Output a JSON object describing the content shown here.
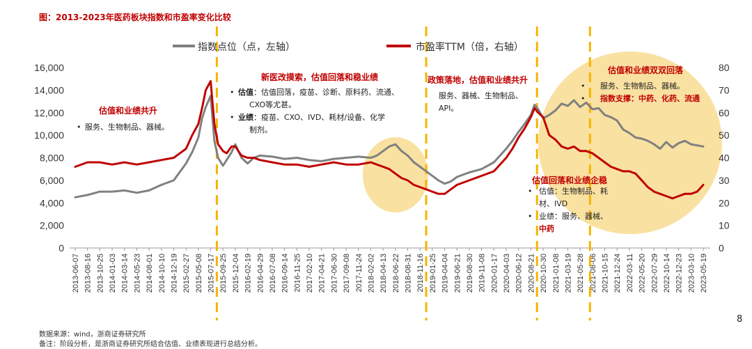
{
  "title": "图：2013-2023年医药板块指数和市盈率变化比较",
  "source": "数据来源：wind，浙商证券研究所",
  "note": "备注：阶段分析，是浙商证券研究所结合估值、业绩表现进行总结分析。",
  "page_number": "8",
  "colors": {
    "index": "#808080",
    "pe": "#c00000",
    "dash": "#f5b400",
    "circle": "#f8d98a",
    "title": "#c00000"
  },
  "annotations": {
    "a1_title": "估值和业绩共升",
    "a1_l1": "服务、生物制品、器械。",
    "a2_title": "新医改摸索，估值回落和稳业绩",
    "a2_l1a": "估值",
    "a2_l1b": "：估值回落，疫苗、诊断、原料药、流通、",
    "a2_l2": "CXO等尤甚。",
    "a2_l3a": "业绩",
    "a2_l3b": "：疫苗、CXO、IVD、耗材/设备、化学",
    "a2_l4": "制剂。",
    "a3_title": "政策落地，估值和业绩共升",
    "a3_l1": "服务、器械、生物制品、",
    "a3_l2": "API。",
    "a4_title": "估值和业绩双双回落",
    "a4_l1": "服务、生物制品、器械。",
    "a4_l2a": "指数支撑",
    "a4_l2b": "：中药、化药、流通",
    "a5_title": "估值回落和业绩企稳",
    "a5_l1": "估值：生物制品、耗",
    "a5_l2": "材、IVD",
    "a5_l3": "业绩：服务、器械、",
    "a5_l4": "中药"
  },
  "chart_data": {
    "type": "line",
    "title": "图：2013-2023年医药板块指数和市盈率变化比较",
    "legend_placement": "top",
    "grid": false,
    "x_ticks": [
      "2013-06-07",
      "2013-08-16",
      "2013-10-25",
      "2014-01-03",
      "2014-03-14",
      "2014-05-23",
      "2014-08-01",
      "2014-10-10",
      "2014-12-19",
      "2015-02-27",
      "2015-05-08",
      "2015-07-17",
      "2015-09-25",
      "2015-12-04",
      "2016-02-19",
      "2016-04-29",
      "2016-07-08",
      "2016-09-14",
      "2016-11-25",
      "2017-02-10",
      "2017-04-21",
      "2017-06-30",
      "2017-09-08",
      "2017-11-24",
      "2018-02-02",
      "2018-04-13",
      "2018-06-22",
      "2018-08-31",
      "2018-11-16",
      "2019-01-25",
      "2019-04-04",
      "2019-06-21",
      "2019-08-30",
      "2019-11-08",
      "2020-01-17",
      "2020-04-03",
      "2020-06-12",
      "2020-08-21",
      "2020-10-30",
      "2021-01-08",
      "2021-03-19",
      "2021-05-28",
      "2021-08-06",
      "2021-10-15",
      "2021-12-24",
      "2022-03-11",
      "2022-05-20",
      "2022-07-29",
      "2022-10-14",
      "2022-12-23",
      "2023-03-10",
      "2023-05-19"
    ],
    "y_left": {
      "label": "指数点位（点，左轴）",
      "min": 0,
      "max": 16000,
      "ticks": [
        "0",
        "2,000",
        "4,000",
        "6,000",
        "8,000",
        "10,000",
        "12,000",
        "14,000",
        "16,000"
      ]
    },
    "y_right": {
      "label": "市盈率TTM（倍，右轴）",
      "min": 0,
      "max": 80,
      "ticks": [
        "0",
        "10",
        "20",
        "30",
        "40",
        "50",
        "60",
        "70",
        "80"
      ]
    },
    "series": [
      {
        "name": "指数点位（点，左轴）",
        "axis": "left",
        "x": [
          0,
          1,
          2,
          3,
          4,
          5,
          6,
          7,
          8,
          9,
          9.5,
          10,
          10.3,
          10.6,
          11,
          11.3,
          11.6,
          12,
          12.3,
          12.7,
          13,
          13.5,
          14,
          14.5,
          15,
          16,
          17,
          18,
          19,
          20,
          21,
          22,
          23,
          24,
          24.5,
          25,
          25.5,
          26,
          26.5,
          27,
          27.5,
          28,
          28.5,
          29,
          29.5,
          30,
          30.5,
          31,
          32,
          33,
          34,
          35,
          35.5,
          36,
          36.5,
          37,
          37.3,
          37.6,
          38,
          38.5,
          39,
          39.5,
          40,
          40.5,
          41,
          41.5,
          42,
          42.5,
          43,
          43.5,
          44,
          44.5,
          45,
          45.5,
          46,
          46.5,
          47,
          47.5,
          48,
          48.5,
          49,
          49.5,
          50,
          50.5,
          51
        ],
        "values": [
          4500,
          4700,
          5000,
          5000,
          5100,
          4900,
          5100,
          5600,
          6000,
          7500,
          8500,
          9800,
          11500,
          12500,
          13500,
          9500,
          8000,
          7300,
          7800,
          8500,
          9200,
          8000,
          7500,
          8000,
          8200,
          8100,
          7900,
          8000,
          7800,
          7700,
          7900,
          8000,
          8100,
          8000,
          8200,
          8600,
          9000,
          9200,
          8600,
          8200,
          7600,
          7200,
          6800,
          6400,
          6000,
          5700,
          5900,
          6300,
          6700,
          7000,
          7600,
          8800,
          9500,
          10300,
          11000,
          11800,
          12700,
          12300,
          11500,
          11800,
          12200,
          12800,
          12600,
          13100,
          12500,
          12900,
          12300,
          12400,
          11800,
          11600,
          11300,
          10500,
          10200,
          9800,
          9700,
          9500,
          9200,
          8800,
          9400,
          8900,
          9300,
          9500,
          9200,
          9100,
          9000
        ]
      },
      {
        "name": "市盈率TTM（倍，右轴）",
        "axis": "right",
        "x": [
          0,
          1,
          2,
          3,
          4,
          5,
          6,
          7,
          8,
          9,
          9.5,
          10,
          10.3,
          10.6,
          11,
          11.3,
          11.6,
          12,
          12.3,
          12.7,
          13,
          13.5,
          14,
          14.5,
          15,
          16,
          17,
          18,
          19,
          20,
          21,
          22,
          23,
          24,
          24.5,
          25,
          25.5,
          26,
          26.5,
          27,
          27.5,
          28,
          28.5,
          29,
          29.5,
          30,
          30.5,
          31,
          32,
          33,
          34,
          35,
          35.5,
          36,
          36.5,
          37,
          37.3,
          37.6,
          38,
          38.5,
          39,
          39.5,
          40,
          40.5,
          41,
          41.5,
          42,
          42.5,
          43,
          43.5,
          44,
          44.5,
          45,
          45.5,
          46,
          46.5,
          47,
          47.5,
          48,
          48.5,
          49,
          49.5,
          50,
          50.5,
          51
        ],
        "values": [
          36,
          38,
          38,
          37,
          38,
          37,
          38,
          39,
          40,
          44,
          50,
          55,
          62,
          70,
          74,
          55,
          46,
          43,
          42,
          45,
          45,
          41,
          40,
          40,
          39,
          38,
          37,
          37,
          36,
          37,
          38,
          37,
          37,
          38,
          37,
          36,
          35,
          33,
          31,
          30,
          28,
          27,
          26,
          25,
          24,
          24,
          26,
          28,
          30,
          32,
          34,
          40,
          44,
          49,
          53,
          58,
          62,
          60,
          58,
          50,
          48,
          45,
          44,
          45,
          43,
          43,
          42,
          40,
          38,
          36,
          35,
          34,
          34,
          33,
          30,
          27,
          25,
          24,
          23,
          22,
          23,
          24,
          24,
          25,
          28
        ]
      }
    ]
  }
}
